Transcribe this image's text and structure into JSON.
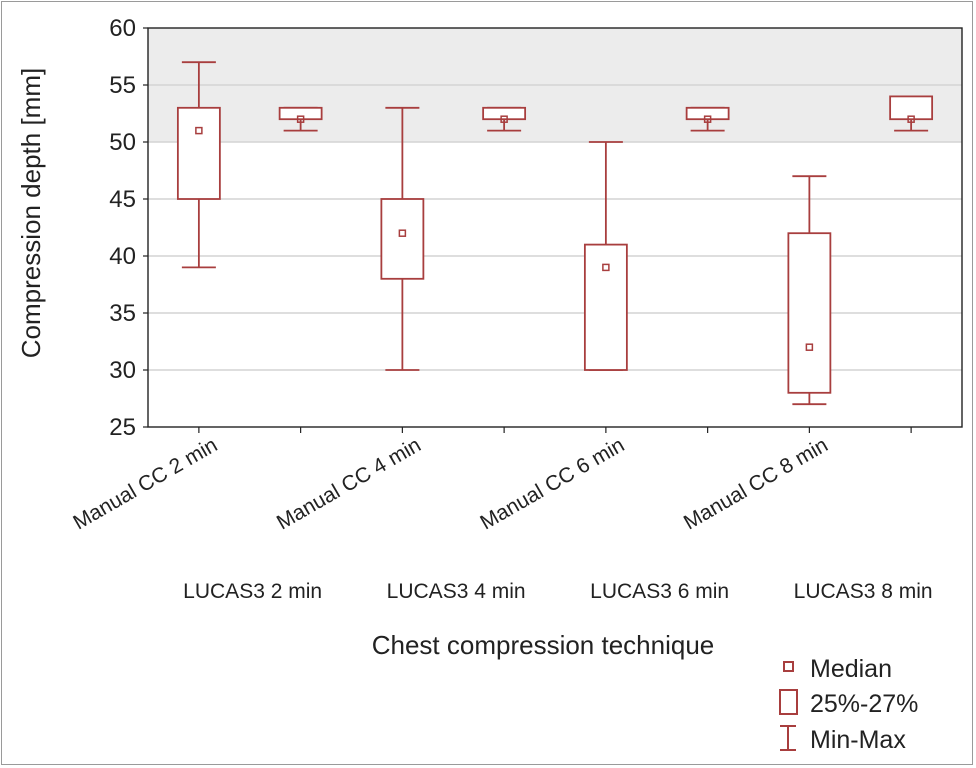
{
  "chart_data": {
    "type": "boxplot",
    "ylabel": "Compression depth [mm]",
    "xlabel": "Chest compression technique",
    "ylim": [
      25,
      60
    ],
    "yticks": [
      25,
      30,
      35,
      40,
      45,
      50,
      55,
      60
    ],
    "target_band": [
      50,
      60
    ],
    "grid": "horizontal",
    "color": "#a83e3e",
    "band_color": "#ececec",
    "categories": [
      "Manual CC 2 min",
      "LUCAS3 2 min",
      "Manual CC 4 min",
      "LUCAS3 4 min",
      "Manual CC 6 min",
      "LUCAS3 6 min",
      "Manual CC 8 min",
      "LUCAS3 8 min"
    ],
    "boxes": [
      {
        "min": 39,
        "q1": 45,
        "median": 51,
        "q3": 53,
        "max": 57
      },
      {
        "min": 51,
        "q1": 52,
        "median": 52,
        "q3": 53,
        "max": 53
      },
      {
        "min": 30,
        "q1": 38,
        "median": 42,
        "q3": 45,
        "max": 53
      },
      {
        "min": 51,
        "q1": 52,
        "median": 52,
        "q3": 53,
        "max": 53
      },
      {
        "min": 30,
        "q1": 30,
        "median": 39,
        "q3": 41,
        "max": 50
      },
      {
        "min": 51,
        "q1": 52,
        "median": 52,
        "q3": 53,
        "max": 53
      },
      {
        "min": 27,
        "q1": 28,
        "median": 32,
        "q3": 42,
        "max": 47
      },
      {
        "min": 51,
        "q1": 52,
        "median": 52,
        "q3": 54,
        "max": 54
      }
    ],
    "legend": {
      "position": "bottom-right",
      "items": [
        "Median",
        "25%-27%",
        "Min-Max"
      ]
    }
  }
}
